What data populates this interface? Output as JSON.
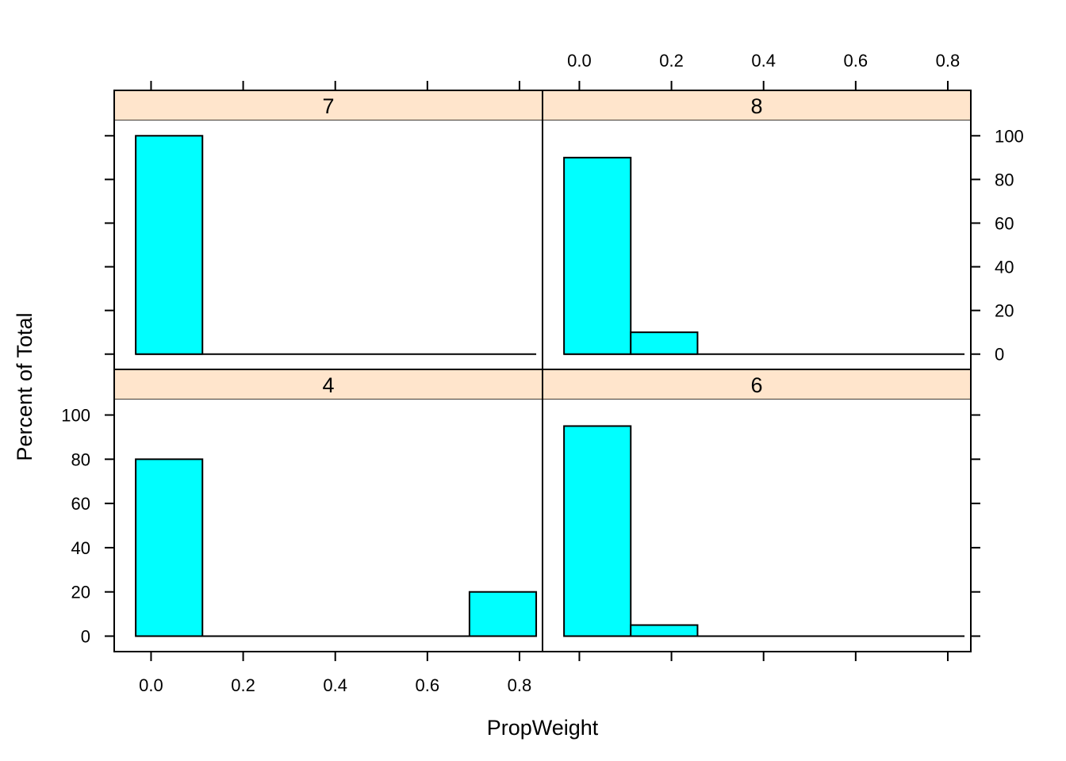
{
  "chart_data": {
    "type": "bar",
    "xlabel": "PropWeight",
    "ylabel": "Percent of Total",
    "xlim": [
      -0.08,
      0.85
    ],
    "ylim": [
      -7,
      107
    ],
    "x_ticks": [
      0.0,
      0.2,
      0.4,
      0.6,
      0.8
    ],
    "y_ticks": [
      0,
      20,
      40,
      60,
      80,
      100
    ],
    "x_tick_labels": [
      "0.0",
      "0.2",
      "0.4",
      "0.6",
      "0.8"
    ],
    "y_tick_labels": [
      "0",
      "20",
      "40",
      "60",
      "80",
      "100"
    ],
    "bar_color": "#00FFFF",
    "strip_color": "#FFE5CC",
    "grid": false,
    "panels": [
      {
        "label": "7",
        "row": "top",
        "col": "left",
        "bars": [
          {
            "x0": -0.0333,
            "x1": 0.1116,
            "value": 100
          },
          {
            "x0": 0.1116,
            "x1": 0.2566,
            "value": 0
          },
          {
            "x0": 0.2566,
            "x1": 0.4015,
            "value": 0
          },
          {
            "x0": 0.4015,
            "x1": 0.5464,
            "value": 0
          },
          {
            "x0": 0.5464,
            "x1": 0.6914,
            "value": 0
          },
          {
            "x0": 0.6914,
            "x1": 0.8363,
            "value": 0
          }
        ]
      },
      {
        "label": "8",
        "row": "top",
        "col": "right",
        "bars": [
          {
            "x0": -0.0333,
            "x1": 0.1116,
            "value": 90
          },
          {
            "x0": 0.1116,
            "x1": 0.2566,
            "value": 10
          },
          {
            "x0": 0.2566,
            "x1": 0.4015,
            "value": 0
          },
          {
            "x0": 0.4015,
            "x1": 0.5464,
            "value": 0
          },
          {
            "x0": 0.5464,
            "x1": 0.6914,
            "value": 0
          },
          {
            "x0": 0.6914,
            "x1": 0.8363,
            "value": 0
          }
        ]
      },
      {
        "label": "4",
        "row": "bottom",
        "col": "left",
        "bars": [
          {
            "x0": -0.0333,
            "x1": 0.1116,
            "value": 80
          },
          {
            "x0": 0.1116,
            "x1": 0.2566,
            "value": 0
          },
          {
            "x0": 0.2566,
            "x1": 0.4015,
            "value": 0
          },
          {
            "x0": 0.4015,
            "x1": 0.5464,
            "value": 0
          },
          {
            "x0": 0.5464,
            "x1": 0.6914,
            "value": 0
          },
          {
            "x0": 0.6914,
            "x1": 0.8363,
            "value": 20
          }
        ]
      },
      {
        "label": "6",
        "row": "bottom",
        "col": "right",
        "bars": [
          {
            "x0": -0.0333,
            "x1": 0.1116,
            "value": 95
          },
          {
            "x0": 0.1116,
            "x1": 0.2566,
            "value": 5
          },
          {
            "x0": 0.2566,
            "x1": 0.4015,
            "value": 0
          },
          {
            "x0": 0.4015,
            "x1": 0.5464,
            "value": 0
          },
          {
            "x0": 0.5464,
            "x1": 0.6914,
            "value": 0
          },
          {
            "x0": 0.6914,
            "x1": 0.8363,
            "value": 0
          }
        ]
      }
    ]
  }
}
